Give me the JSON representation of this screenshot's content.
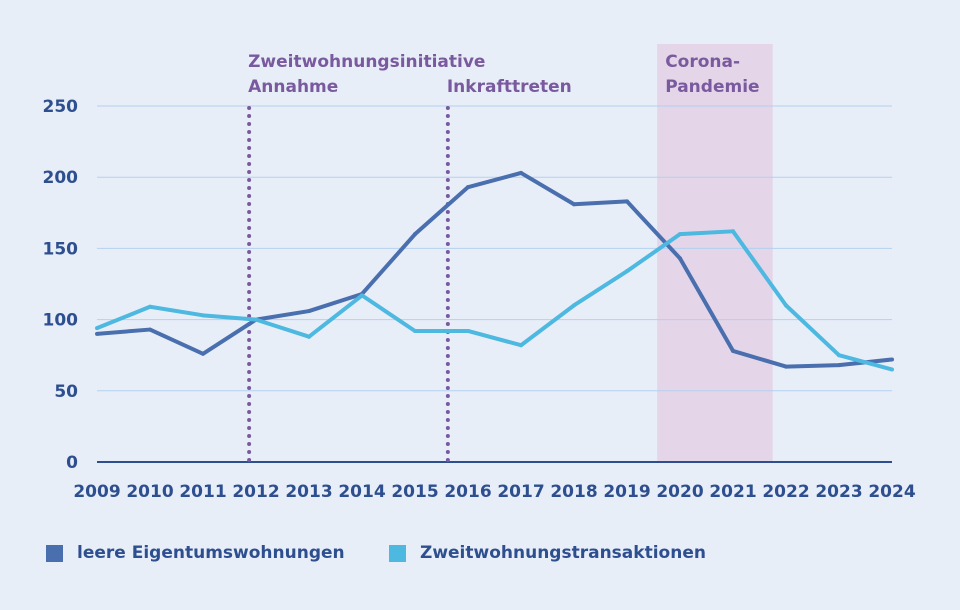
{
  "chart_data": {
    "type": "line",
    "title": "",
    "xlabel": "",
    "ylabel": "",
    "x": [
      2009,
      2010,
      2011,
      2012,
      2013,
      2014,
      2015,
      2016,
      2017,
      2018,
      2019,
      2020,
      2021,
      2022,
      2023,
      2024
    ],
    "x_tick_labels": [
      "2009",
      "2010",
      "2011",
      "2012",
      "2013",
      "2014",
      "2015",
      "2016",
      "2017",
      "2018",
      "2019",
      "2020",
      "2021",
      "2022",
      "2023",
      "2024"
    ],
    "ylim": [
      0,
      250
    ],
    "y_ticks": [
      0,
      50,
      100,
      150,
      200,
      250
    ],
    "y_tick_labels": [
      "0",
      "50",
      "100",
      "150",
      "200",
      "250"
    ],
    "grid": "horizontal",
    "legend_position": "bottom",
    "series": [
      {
        "name": "leere Eigentumswohnungen",
        "color": "#4a6fae",
        "values": [
          90,
          93,
          76,
          100,
          106,
          118,
          160,
          193,
          203,
          181,
          183,
          143,
          78,
          67,
          68,
          72
        ]
      },
      {
        "name": "Zweitwohnungstransaktionen",
        "color": "#4db8e0",
        "values": [
          94,
          109,
          103,
          100,
          88,
          117,
          92,
          92,
          82,
          110,
          134,
          160,
          162,
          110,
          75,
          65
        ]
      }
    ],
    "annotations": [
      {
        "type": "vline",
        "x": 2011.87,
        "label_lines": [
          "Zweitwohnungsinitiative",
          "Annahme"
        ],
        "color": "#7a5a9e"
      },
      {
        "type": "vline",
        "x": 2015.62,
        "label_lines": [
          "Inkrafttreten"
        ],
        "color": "#7a5a9e"
      },
      {
        "type": "band",
        "x_start": 2019.57,
        "x_end": 2021.75,
        "label_lines": [
          "Corona-",
          "Pandemie"
        ],
        "color": "#e4d5e8"
      }
    ]
  }
}
